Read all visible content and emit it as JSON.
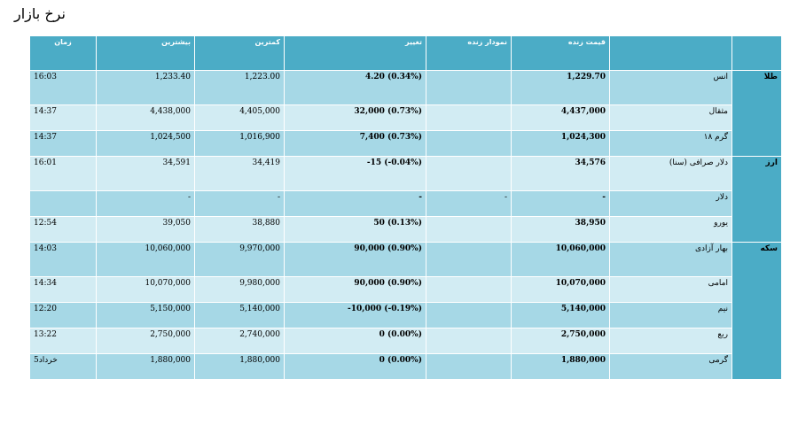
{
  "page": {
    "title": "نرخ بازار"
  },
  "headers": {
    "time": "زمان",
    "high": "بیشترین",
    "low": "کمترین",
    "change": "تغییر",
    "live_chart": "نمودار زنده",
    "live_price": "قیمت زنده",
    "name": "",
    "group": ""
  },
  "groups": [
    {
      "label": "طلا",
      "rows": [
        {
          "name": "انس",
          "price": "1,229.70",
          "live_chart": "",
          "change": "4.20 (0.34%)",
          "low": "1,223.00",
          "high": "1,233.40",
          "time": "16:03"
        },
        {
          "name": "مثقال",
          "price": "4,437,000",
          "live_chart": "",
          "change": "32,000 (0.73%)",
          "low": "4,405,000",
          "high": "4,438,000",
          "time": "14:37"
        },
        {
          "name": "گرم ۱۸",
          "price": "1,024,300",
          "live_chart": "",
          "change": "7,400 (0.73%)",
          "low": "1,016,900",
          "high": "1,024,500",
          "time": "14:37"
        }
      ]
    },
    {
      "label": "ارز",
      "rows": [
        {
          "name": "دلار صرافی (سنا)",
          "price": "34,576",
          "live_chart": "",
          "change": "-15 (-0.04%)",
          "low": "34,419",
          "high": "34,591",
          "time": "16:01"
        },
        {
          "name": "دلار",
          "price": "-",
          "live_chart": "-",
          "change": "-",
          "low": "-",
          "high": "-",
          "time": ""
        },
        {
          "name": "یورو",
          "price": "38,950",
          "live_chart": "",
          "change": "50 (0.13%)",
          "low": "38,880",
          "high": "39,050",
          "time": "12:54"
        }
      ]
    },
    {
      "label": "سکه",
      "rows": [
        {
          "name": "بهار آزادی",
          "price": "10,060,000",
          "live_chart": "",
          "change": "90,000 (0.90%)",
          "low": "9,970,000",
          "high": "10,060,000",
          "time": "14:03"
        },
        {
          "name": "امامی",
          "price": "10,070,000",
          "live_chart": "",
          "change": "90,000 (0.90%)",
          "low": "9,980,000",
          "high": "10,070,000",
          "time": "14:34"
        },
        {
          "name": "نیم",
          "price": "5,140,000",
          "live_chart": "",
          "change": "-10,000 (-0.19%)",
          "low": "5,140,000",
          "high": "5,150,000",
          "time": "12:20"
        },
        {
          "name": "ربع",
          "price": "2,750,000",
          "live_chart": "",
          "change": "0 (0.00%)",
          "low": "2,740,000",
          "high": "2,750,000",
          "time": "13:22"
        },
        {
          "name": "گرمی",
          "price": "1,880,000",
          "live_chart": "",
          "change": "0 (0.00%)",
          "low": "1,880,000",
          "high": "1,880,000",
          "time": "5خرداد"
        }
      ]
    }
  ]
}
